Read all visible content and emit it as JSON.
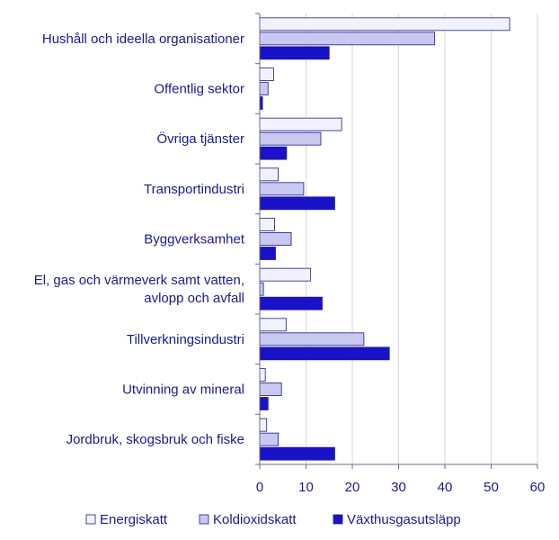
{
  "chart_data": {
    "type": "bar",
    "orientation": "horizontal",
    "categories": [
      [
        "Hushåll och ideella organisationer"
      ],
      [
        "Offentlig sektor"
      ],
      [
        "Övriga tjänster"
      ],
      [
        "Transportindustri"
      ],
      [
        "Byggverksamhet"
      ],
      [
        "El, gas och värmeverk samt vatten,",
        "avlopp och avfall"
      ],
      [
        "Tillverkningsindustri"
      ],
      [
        "Utvinning av mineral"
      ],
      [
        "Jordbruk, skogsbruk och fiske"
      ]
    ],
    "series": [
      {
        "name": "Energiskatt",
        "color": "#f2f2ff",
        "values": [
          54,
          3,
          17.7,
          4,
          3.2,
          11,
          5.7,
          1.2,
          1.5
        ]
      },
      {
        "name": "Koldioxidskatt",
        "color": "#c8c8f0",
        "values": [
          37.8,
          1.8,
          13.2,
          9.5,
          6.8,
          0.8,
          22.5,
          4.7,
          4
        ]
      },
      {
        "name": "Växthusgasutsläpp",
        "color": "#1a12c8",
        "values": [
          15,
          0.6,
          5.8,
          16.2,
          3.4,
          13.5,
          28,
          1.8,
          16.2
        ]
      }
    ],
    "xlim": [
      0,
      60
    ],
    "xticks": [
      0,
      10,
      20,
      30,
      40,
      50,
      60
    ],
    "grid": true,
    "legend_position": "bottom"
  }
}
